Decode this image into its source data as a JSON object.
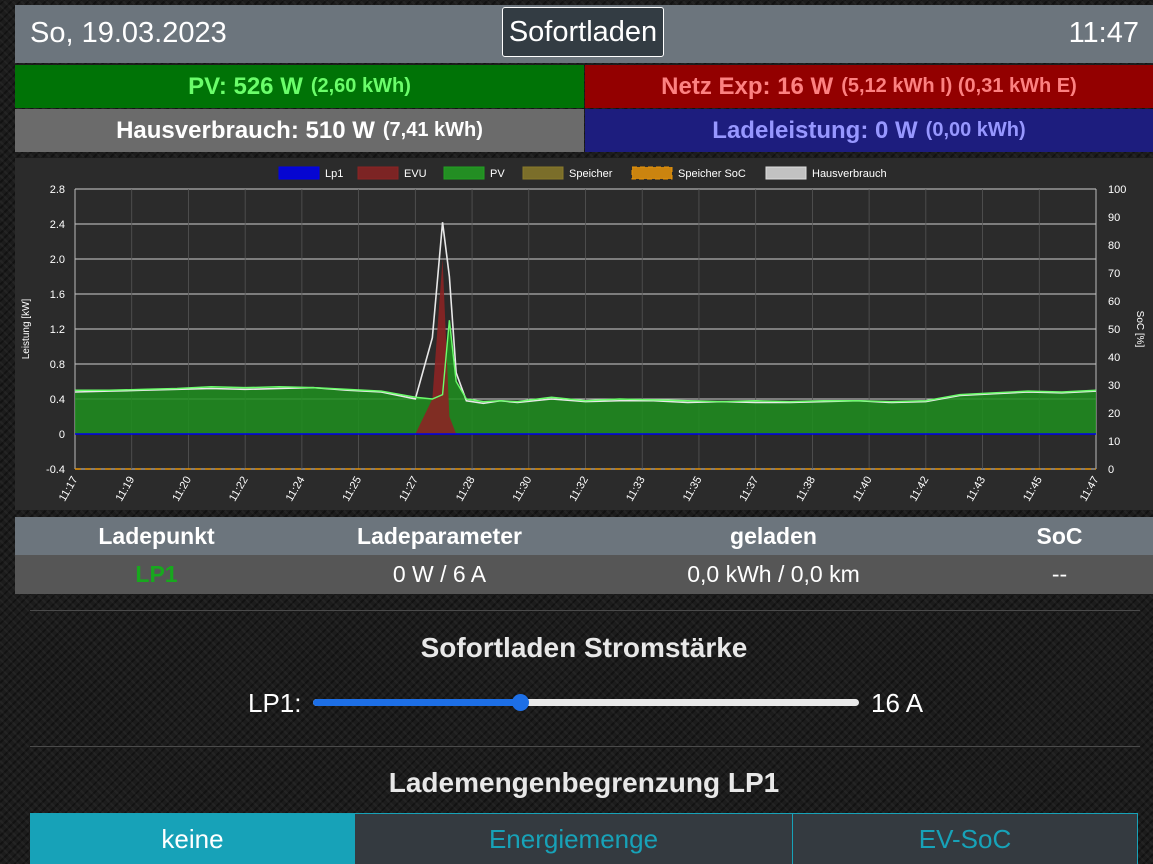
{
  "header": {
    "date": "So, 19.03.2023",
    "mode": "Sofortladen",
    "time": "11:47"
  },
  "tiles": {
    "pv": {
      "main": "PV: 526 W",
      "sub": "(2,60 kWh)"
    },
    "netz": {
      "main": "Netz Exp: 16 W",
      "sub": "(5,12 kWh I) (0,31 kWh E)"
    },
    "haus": {
      "main": "Hausverbrauch: 510 W",
      "sub": "(7,41 kWh)"
    },
    "lade": {
      "main": "Ladeleistung: 0 W",
      "sub": "(0,00 kWh)"
    }
  },
  "chart_data": {
    "type": "line",
    "ylabel": "Leistung [kW]",
    "y2label": "SoC [%]",
    "ylim": [
      -0.4,
      2.8
    ],
    "y2lim": [
      0,
      100
    ],
    "yticks": [
      "-0.4",
      "0",
      "0.4",
      "0.8",
      "1.2",
      "1.6",
      "2.0",
      "2.4",
      "2.8"
    ],
    "y2ticks": [
      "0",
      "10",
      "20",
      "30",
      "40",
      "50",
      "60",
      "70",
      "80",
      "90",
      "100"
    ],
    "xticks": [
      "11:17",
      "11:19",
      "11:20",
      "11:22",
      "11:24",
      "11:25",
      "11:27",
      "11:28",
      "11:30",
      "11:32",
      "11:33",
      "11:35",
      "11:37",
      "11:38",
      "11:40",
      "11:42",
      "11:43",
      "11:45",
      "11:47"
    ],
    "legend": [
      {
        "name": "Lp1",
        "color": "#0000ee"
      },
      {
        "name": "EVU",
        "color": "#8b2323"
      },
      {
        "name": "PV",
        "color": "#22a022"
      },
      {
        "name": "Speicher",
        "color": "#8a7a2a"
      },
      {
        "name": "Speicher SoC",
        "color": "#e8940a"
      },
      {
        "name": "Hausverbrauch",
        "color": "#dddddd"
      }
    ],
    "x_minutes": [
      0,
      1,
      2,
      3,
      4,
      5,
      6,
      7,
      8,
      9,
      10,
      10.5,
      10.8,
      11,
      11.2,
      11.5,
      12,
      12.5,
      13,
      14,
      15,
      16,
      17,
      18,
      19,
      20,
      21,
      22,
      23,
      24,
      25,
      26,
      27,
      28,
      29,
      30
    ],
    "series": [
      {
        "name": "Hausverbrauch",
        "values": [
          0.48,
          0.49,
          0.5,
          0.51,
          0.52,
          0.51,
          0.52,
          0.53,
          0.5,
          0.48,
          0.4,
          1.1,
          2.42,
          1.8,
          0.7,
          0.38,
          0.35,
          0.38,
          0.36,
          0.4,
          0.37,
          0.38,
          0.38,
          0.36,
          0.37,
          0.36,
          0.36,
          0.37,
          0.38,
          0.36,
          0.37,
          0.44,
          0.46,
          0.48,
          0.47,
          0.49
        ]
      },
      {
        "name": "PV",
        "values": [
          0.5,
          0.5,
          0.51,
          0.52,
          0.54,
          0.53,
          0.54,
          0.53,
          0.51,
          0.49,
          0.42,
          0.4,
          0.45,
          1.3,
          0.6,
          0.4,
          0.37,
          0.38,
          0.37,
          0.42,
          0.38,
          0.4,
          0.39,
          0.38,
          0.37,
          0.38,
          0.37,
          0.38,
          0.38,
          0.37,
          0.38,
          0.45,
          0.47,
          0.49,
          0.48,
          0.5
        ]
      },
      {
        "name": "EVU",
        "values": [
          0,
          0,
          0,
          0,
          0,
          0,
          0,
          0,
          0,
          0,
          0,
          0.4,
          2.0,
          0.2,
          0,
          0,
          0,
          0,
          0,
          0,
          0,
          0,
          0,
          0,
          0,
          0,
          0,
          0,
          0,
          0,
          0,
          0,
          0,
          0,
          0,
          0
        ]
      },
      {
        "name": "Speicher SoC",
        "values": [
          0,
          0,
          0,
          0,
          0,
          0,
          0,
          0,
          0,
          0,
          0,
          0,
          0,
          0,
          0,
          0,
          0,
          0,
          0,
          0,
          0,
          0,
          0,
          0,
          0,
          0,
          0,
          0,
          0,
          0,
          0,
          0,
          0,
          0,
          0,
          0
        ]
      }
    ]
  },
  "table": {
    "headers": [
      "Ladepunkt",
      "Ladeparameter",
      "geladen",
      "SoC"
    ],
    "row": {
      "name": "LP1",
      "param": "0 W / 6 A",
      "geladen": "0,0 kWh / 0,0 km",
      "soc": "--"
    }
  },
  "current": {
    "title": "Sofortladen Stromstärke",
    "label": "LP1:",
    "value": "16 A",
    "level_fraction": 0.38
  },
  "limit": {
    "title": "Lademengenbegrenzung LP1",
    "options": [
      "keine",
      "Energiemenge",
      "EV-SoC"
    ],
    "selected": "keine"
  }
}
